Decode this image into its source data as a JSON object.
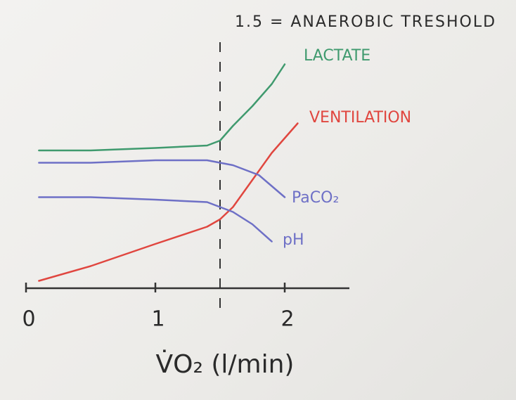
{
  "chart_data": {
    "type": "line",
    "annotation": {
      "x": 1.5,
      "label": "1.5 = ANAEROBIC TRESHOLD"
    },
    "xlabel": "V̇O₂ (l/min)",
    "xlim": [
      0,
      2.5
    ],
    "xticks": [
      0,
      1,
      2
    ],
    "ylim": [
      0,
      100
    ],
    "series": [
      {
        "name": "LACTATE",
        "color": "#3f9a6e",
        "x": [
          0.1,
          0.5,
          1.0,
          1.4,
          1.5,
          1.6,
          1.75,
          1.9,
          2.0
        ],
        "values": [
          56,
          56,
          57,
          58,
          60,
          66,
          74,
          83,
          91
        ]
      },
      {
        "name": "VENTILATION",
        "color": "#e0463f",
        "x": [
          0.1,
          0.5,
          1.0,
          1.4,
          1.5,
          1.6,
          1.75,
          1.9,
          2.1
        ],
        "values": [
          3,
          9,
          18,
          25,
          28,
          33,
          44,
          55,
          67
        ]
      },
      {
        "name": "PaCO₂",
        "color": "#6e70c6",
        "x": [
          0.1,
          0.5,
          1.0,
          1.4,
          1.6,
          1.8,
          2.0
        ],
        "values": [
          51,
          51,
          52,
          52,
          50,
          46,
          37
        ]
      },
      {
        "name": "pH",
        "color": "#6e70c6",
        "x": [
          0.1,
          0.5,
          1.0,
          1.4,
          1.6,
          1.75,
          1.9
        ],
        "values": [
          37,
          37,
          36,
          35,
          31,
          26,
          19
        ]
      }
    ]
  }
}
